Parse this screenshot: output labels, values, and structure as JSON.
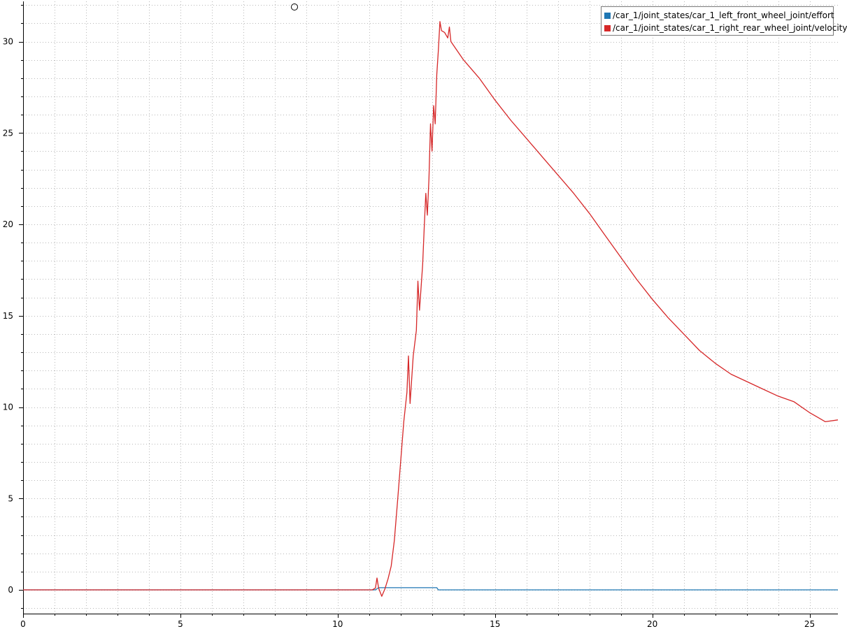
{
  "colors": {
    "effort": "#1f77b4",
    "velocity": "#d62728",
    "grid": "#b8b8b8",
    "axis": "#000000"
  },
  "legend": {
    "placement": "top-right",
    "items": [
      {
        "label": "/car_1/joint_states/car_1_left_front_wheel_joint/effort",
        "color": "#1f77b4"
      },
      {
        "label": "/car_1/joint_states/car_1_right_rear_wheel_joint/velocity",
        "color": "#d62728"
      }
    ]
  },
  "chart_data": {
    "type": "line",
    "title": "",
    "xlabel": "",
    "ylabel": "",
    "xlim": [
      0,
      25.9
    ],
    "ylim": [
      -1.3,
      32.2
    ],
    "x_ticks": [
      0,
      5,
      10,
      15,
      20,
      25
    ],
    "x_tick_labels": [
      "0",
      "5",
      "10",
      "15",
      "20",
      "25"
    ],
    "y_ticks": [
      0,
      5,
      10,
      15,
      20,
      25,
      30
    ],
    "y_tick_labels": [
      "0",
      "5",
      "10",
      "15",
      "20",
      "25",
      "30"
    ],
    "grid": true,
    "series": [
      {
        "name": "/car_1/joint_states/car_1_left_front_wheel_joint/effort",
        "color": "#1f77b4",
        "points": [
          [
            0,
            0
          ],
          [
            11.2,
            0
          ],
          [
            11.3,
            0.12
          ],
          [
            13.15,
            0.12
          ],
          [
            13.2,
            0
          ],
          [
            25.9,
            0
          ]
        ]
      },
      {
        "name": "/car_1/joint_states/car_1_right_rear_wheel_joint/velocity",
        "color": "#d62728",
        "points": [
          [
            0,
            0
          ],
          [
            11.1,
            0
          ],
          [
            11.2,
            0.1
          ],
          [
            11.25,
            0.65
          ],
          [
            11.3,
            0.1
          ],
          [
            11.4,
            -0.35
          ],
          [
            11.5,
            0.05
          ],
          [
            11.6,
            0.6
          ],
          [
            11.7,
            1.3
          ],
          [
            11.8,
            2.7
          ],
          [
            11.9,
            4.8
          ],
          [
            12.0,
            7.0
          ],
          [
            12.1,
            9.2
          ],
          [
            12.2,
            10.8
          ],
          [
            12.25,
            12.8
          ],
          [
            12.3,
            10.2
          ],
          [
            12.4,
            12.8
          ],
          [
            12.5,
            14.2
          ],
          [
            12.55,
            16.9
          ],
          [
            12.6,
            15.3
          ],
          [
            12.7,
            17.8
          ],
          [
            12.75,
            19.8
          ],
          [
            12.8,
            21.7
          ],
          [
            12.85,
            20.5
          ],
          [
            12.9,
            22.5
          ],
          [
            12.95,
            25.5
          ],
          [
            13.0,
            24.0
          ],
          [
            13.05,
            26.5
          ],
          [
            13.1,
            25.5
          ],
          [
            13.15,
            28.2
          ],
          [
            13.2,
            29.5
          ],
          [
            13.25,
            31.1
          ],
          [
            13.3,
            30.6
          ],
          [
            13.4,
            30.5
          ],
          [
            13.5,
            30.2
          ],
          [
            13.55,
            30.8
          ],
          [
            13.6,
            30.0
          ],
          [
            14.0,
            29.0
          ],
          [
            14.5,
            28.0
          ],
          [
            15.0,
            26.8
          ],
          [
            15.5,
            25.7
          ],
          [
            16.0,
            24.7
          ],
          [
            16.5,
            23.7
          ],
          [
            17.0,
            22.7
          ],
          [
            17.5,
            21.7
          ],
          [
            18.0,
            20.6
          ],
          [
            18.5,
            19.4
          ],
          [
            19.0,
            18.2
          ],
          [
            19.5,
            17.0
          ],
          [
            20.0,
            15.9
          ],
          [
            20.5,
            14.9
          ],
          [
            21.0,
            14.0
          ],
          [
            21.5,
            13.1
          ],
          [
            22.0,
            12.4
          ],
          [
            22.5,
            11.8
          ],
          [
            23.0,
            11.4
          ],
          [
            23.5,
            11.0
          ],
          [
            24.0,
            10.6
          ],
          [
            24.5,
            10.3
          ],
          [
            25.0,
            9.7
          ],
          [
            25.2,
            9.5
          ],
          [
            25.5,
            9.2
          ],
          [
            25.9,
            9.3
          ]
        ]
      }
    ],
    "annotations": []
  }
}
